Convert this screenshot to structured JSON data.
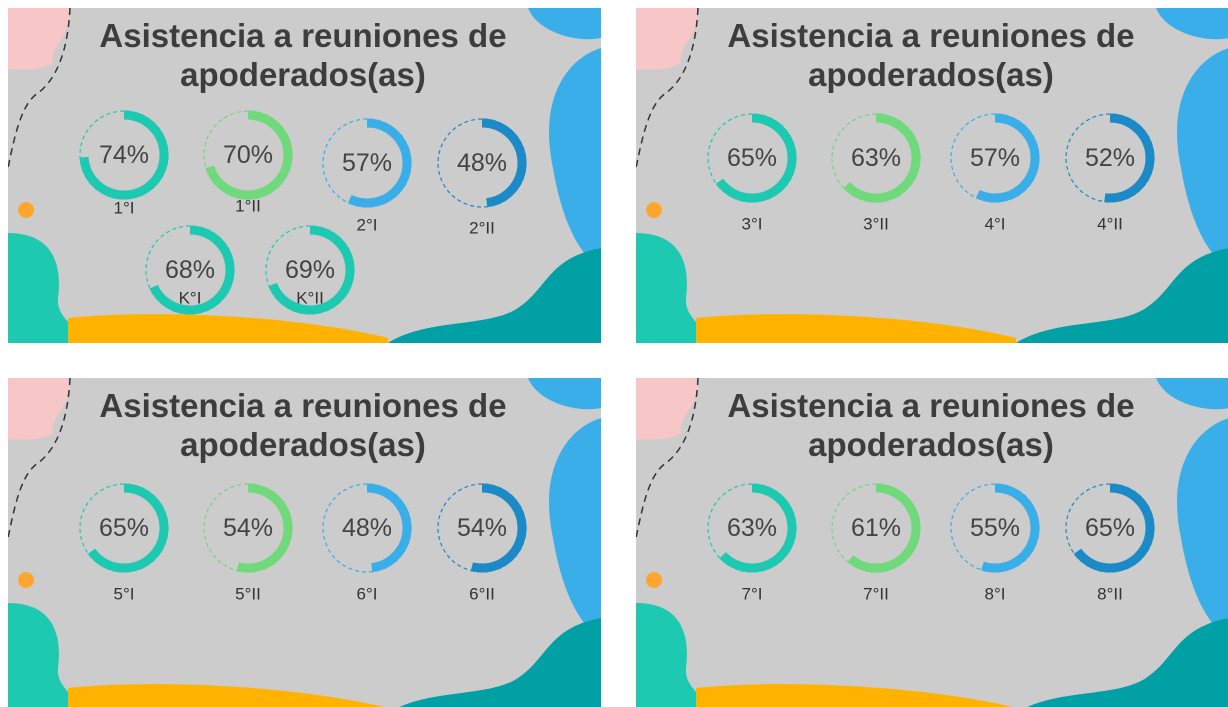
{
  "chart_data": [
    {
      "type": "gauge",
      "title": "Asistencia a reuniones de apoderados(as)",
      "categories": [
        "1°I",
        "1°II",
        "2°I",
        "2°II",
        "K°I",
        "K°II"
      ],
      "values": [
        74,
        70,
        57,
        48,
        68,
        69
      ],
      "value_labels": [
        "74%",
        "70%",
        "57%",
        "48%",
        "68%",
        "69%"
      ],
      "colors": [
        "#1ec9b1",
        "#6fd97b",
        "#3aaee8",
        "#1b8ac6",
        "#1ec9b1",
        "#1ec9b1"
      ]
    },
    {
      "type": "gauge",
      "title": "Asistencia a reuniones de apoderados(as)",
      "categories": [
        "3°I",
        "3°II",
        "4°I",
        "4°II"
      ],
      "values": [
        65,
        63,
        57,
        52
      ],
      "value_labels": [
        "65%",
        "63%",
        "57%",
        "52%"
      ],
      "colors": [
        "#1ec9b1",
        "#6fd97b",
        "#3aaee8",
        "#1b8ac6"
      ]
    },
    {
      "type": "gauge",
      "title": "Asistencia a reuniones de apoderados(as)",
      "categories": [
        "5°I",
        "5°II",
        "6°I",
        "6°II"
      ],
      "values": [
        65,
        54,
        48,
        54
      ],
      "value_labels": [
        "65%",
        "54%",
        "48%",
        "54%"
      ],
      "colors": [
        "#1ec9b1",
        "#6fd97b",
        "#3aaee8",
        "#1b8ac6"
      ]
    },
    {
      "type": "gauge",
      "title": "Asistencia a reuniones de apoderados(as)",
      "categories": [
        "7°I",
        "7°II",
        "8°I",
        "8°II"
      ],
      "values": [
        63,
        61,
        55,
        65
      ],
      "value_labels": [
        "63%",
        "61%",
        "55%",
        "65%"
      ],
      "colors": [
        "#1ec9b1",
        "#6fd97b",
        "#3aaee8",
        "#1b8ac6"
      ]
    }
  ]
}
